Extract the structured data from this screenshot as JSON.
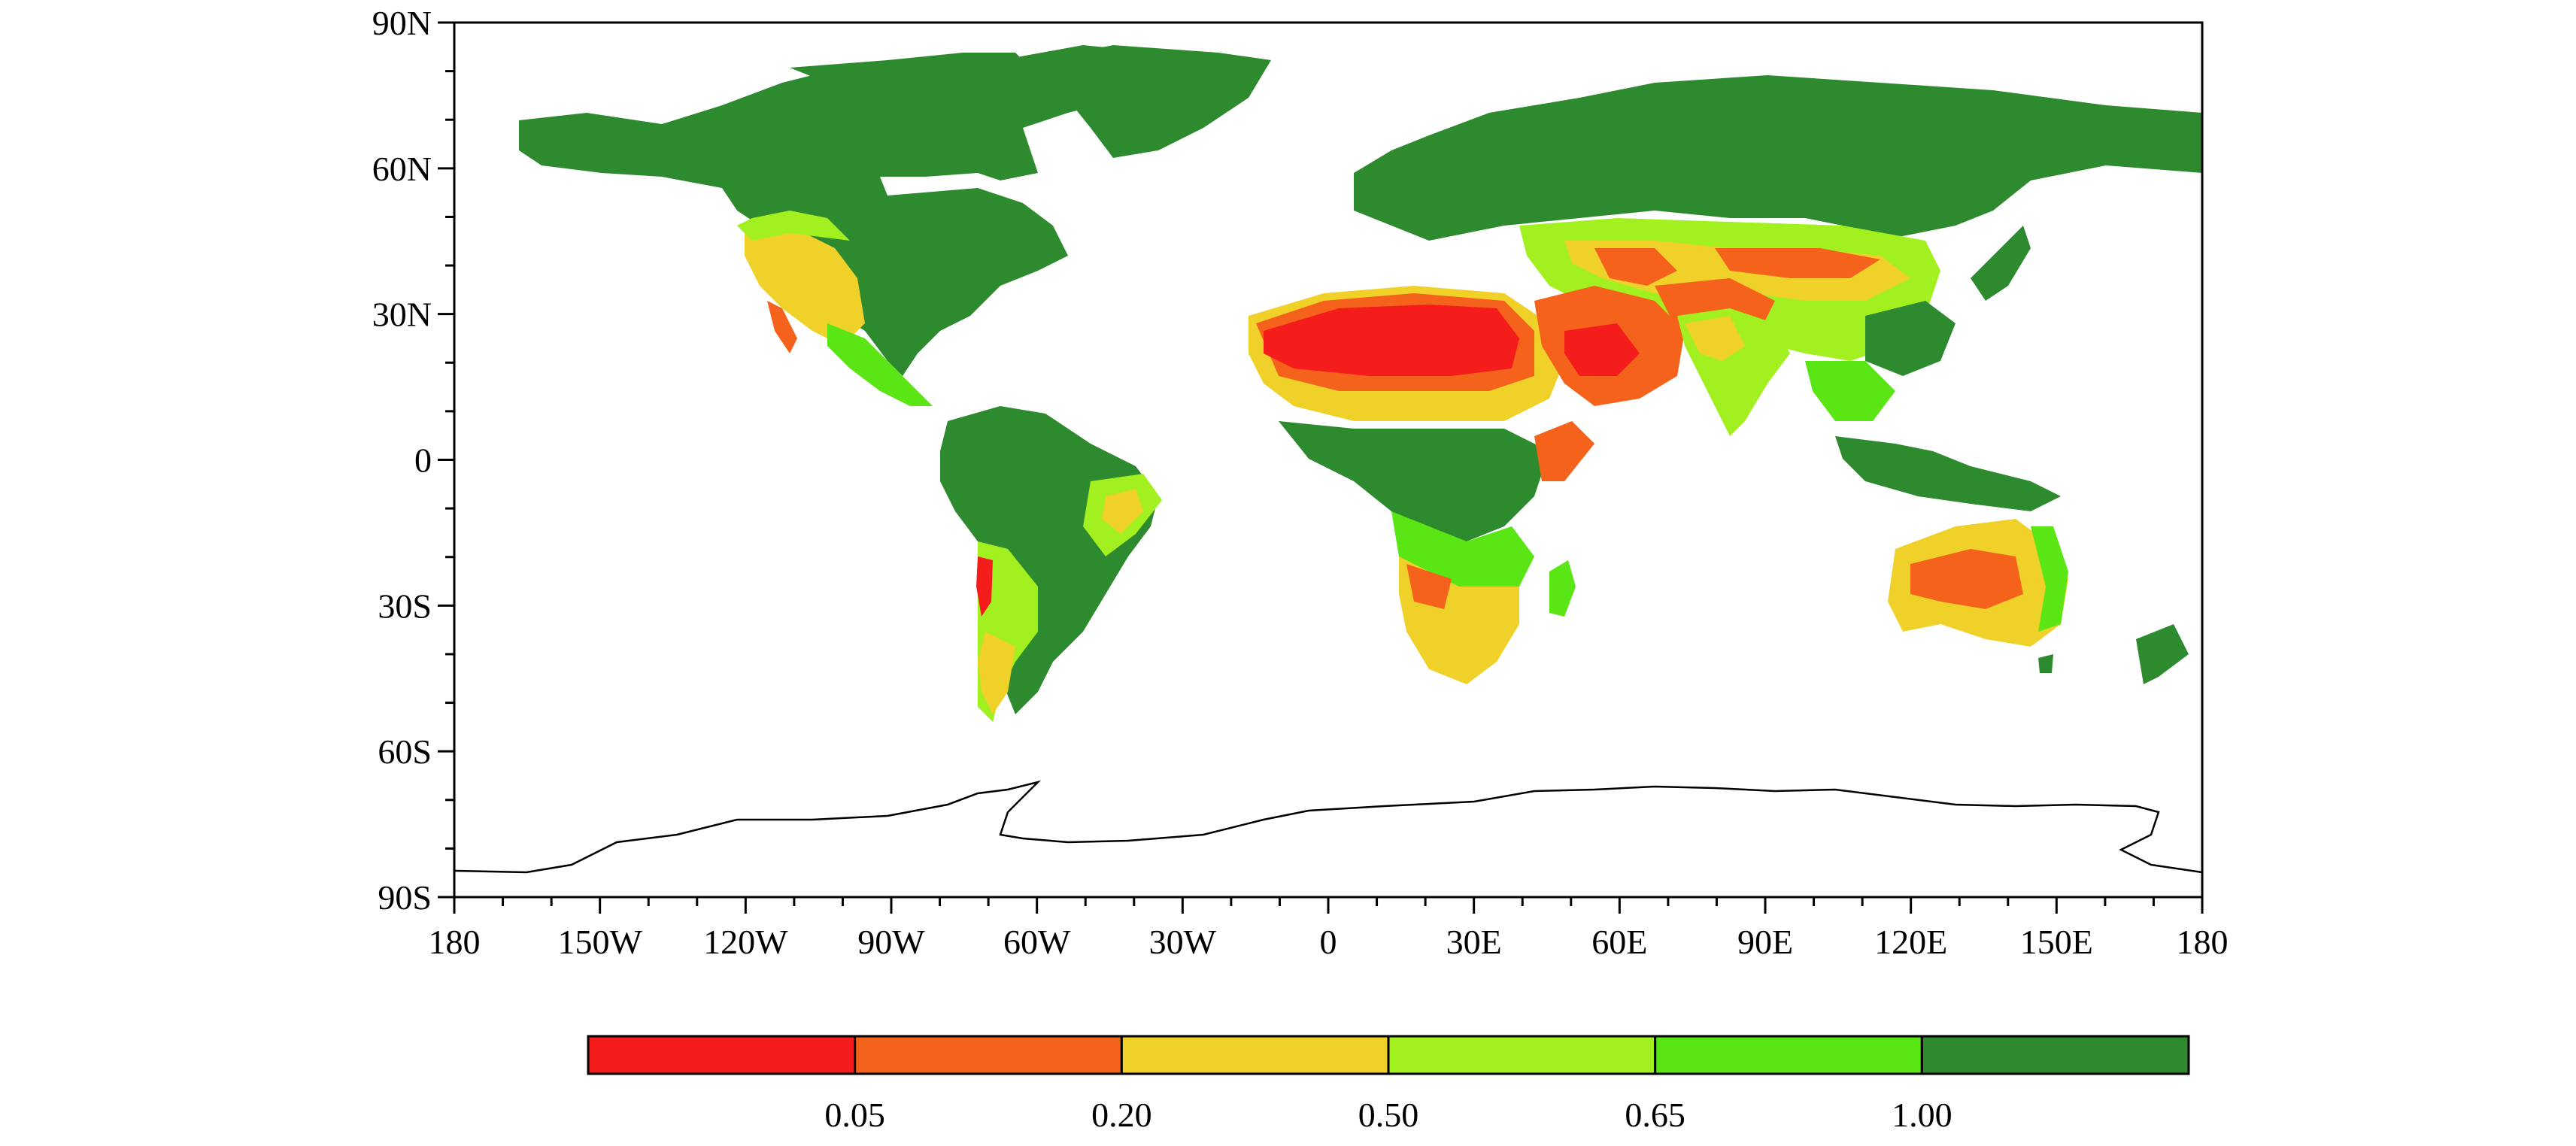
{
  "map": {
    "projection": "equirectangular",
    "lat_ticks": [
      "90N",
      "60N",
      "30N",
      "0",
      "30S",
      "60S",
      "90S"
    ],
    "lon_ticks": [
      "180",
      "150W",
      "120W",
      "90W",
      "60W",
      "30W",
      "0",
      "30E",
      "60E",
      "90E",
      "120E",
      "150E",
      "180"
    ],
    "lat_range": [
      -90,
      90
    ],
    "lon_range": [
      -180,
      180
    ],
    "grid": false
  },
  "colorbar": {
    "boundaries": [
      "0.05",
      "0.20",
      "0.50",
      "0.65",
      "1.00"
    ],
    "colors": [
      "#f51c1c",
      "#f5621c",
      "#efd12a",
      "#a2f020",
      "#5ae514",
      "#2e8a2e"
    ]
  }
}
